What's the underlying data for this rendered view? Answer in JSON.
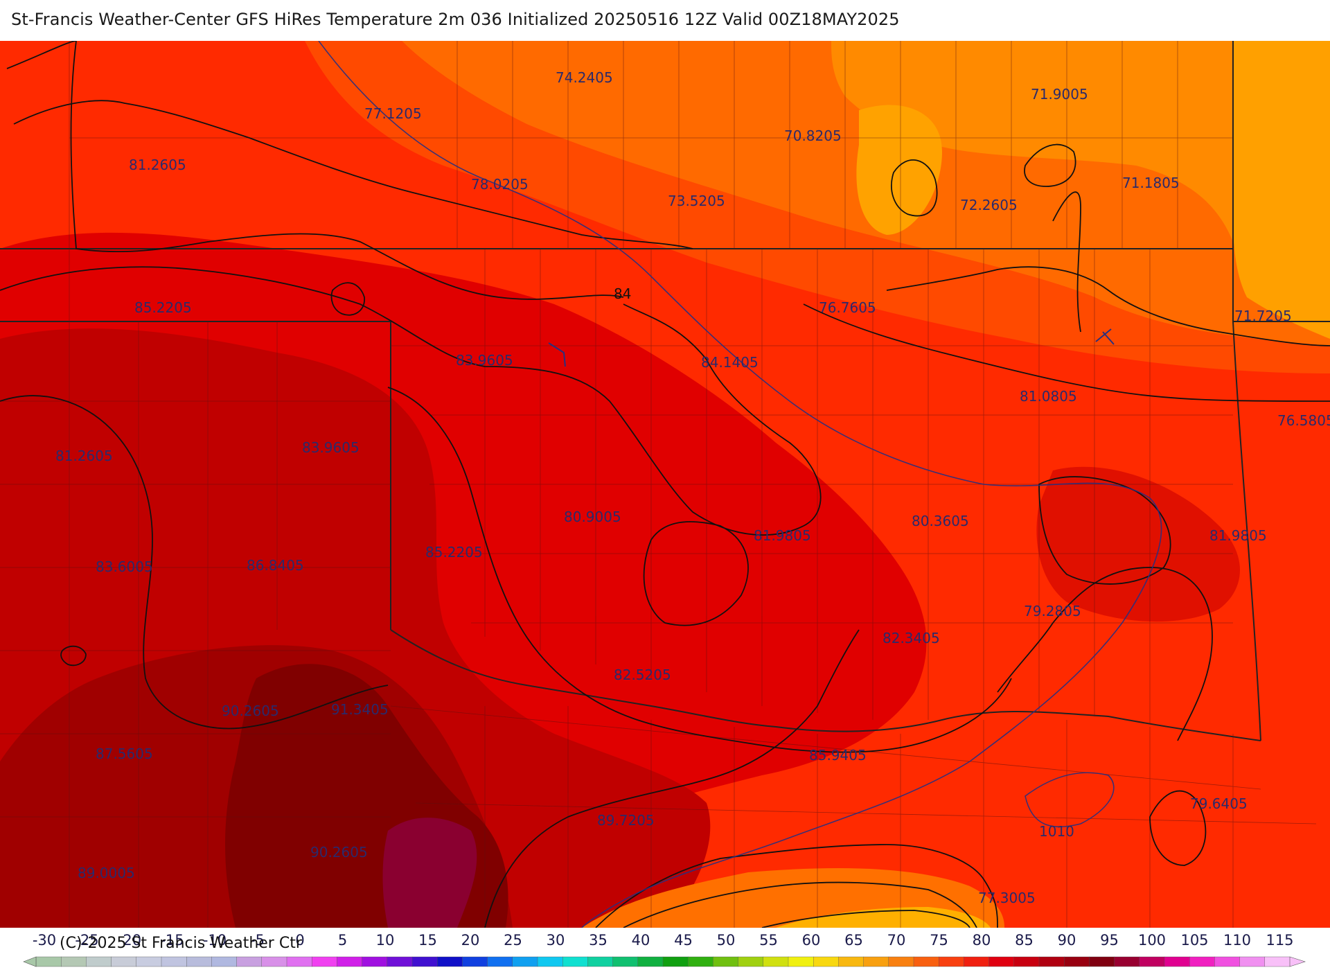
{
  "title": "St-Francis Weather-Center GFS HiRes Temperature 2m  036 Initialized 20250516 12Z Valid 00Z18MAY2025",
  "copyright": "(C)-2025 St Francis Weather Ctr",
  "map_labels": {
    "temperature_values": [
      "74.2405",
      "71.9005",
      "77.1205",
      "70.8205",
      "81.2605",
      "78.0205",
      "73.5205",
      "71.1805",
      "72.2605",
      "85.2205",
      "76.7605",
      "71.7205",
      "83.9605",
      "84.1405",
      "81.0805",
      "76.5805",
      "81.2605",
      "83.9605",
      "80.9005",
      "80.3605",
      "81.9805",
      "81.9805",
      "85.2205",
      "83.6005",
      "86.8405",
      "79.2805",
      "82.3405",
      "82.5205",
      "90.2605",
      "91.3405",
      "87.5605",
      "85.9405",
      "89.7205",
      "79.6405",
      "90.2605",
      "89.0005",
      "77.3005"
    ],
    "contour_labels": [
      "84",
      "1010"
    ]
  },
  "colorbar": {
    "ticks": [
      "-30",
      "-25",
      "-20",
      "-15",
      "-10",
      "-5",
      "0",
      "5",
      "10",
      "15",
      "20",
      "25",
      "30",
      "35",
      "40",
      "45",
      "50",
      "55",
      "60",
      "65",
      "70",
      "75",
      "80",
      "85",
      "90",
      "95",
      "100",
      "105",
      "110",
      "115"
    ],
    "colors": [
      "#a8c8a8",
      "#b4c8b4",
      "#c0cccc",
      "#c8ccd8",
      "#c8cce0",
      "#c0c4e0",
      "#b8bcdc",
      "#b0b8e0",
      "#c8a0e0",
      "#d890e8",
      "#e070f0",
      "#f040f0",
      "#d020e8",
      "#a010e0",
      "#7010d8",
      "#4010d0",
      "#1010c8",
      "#1040e0",
      "#1070f0",
      "#10a0f0",
      "#10c8f0",
      "#10e0d0",
      "#10d0a0",
      "#10c070",
      "#10b040",
      "#10a010",
      "#30b010",
      "#70c010",
      "#a0d010",
      "#d0e010",
      "#f0f010",
      "#f8d810",
      "#f8b810",
      "#f8a010",
      "#f88010",
      "#f86010",
      "#f84010",
      "#f02010",
      "#e00010",
      "#c80010",
      "#b00010",
      "#980010",
      "#800010",
      "#980030",
      "#c00060",
      "#e00090",
      "#f020c0",
      "#f050e0",
      "#f090f0",
      "#f8c0f8"
    ],
    "accent_colors": {
      "hot": "#7a0000",
      "warm": "#ff2200",
      "mild": "#ff7a00",
      "cool": "#ffb000"
    }
  }
}
